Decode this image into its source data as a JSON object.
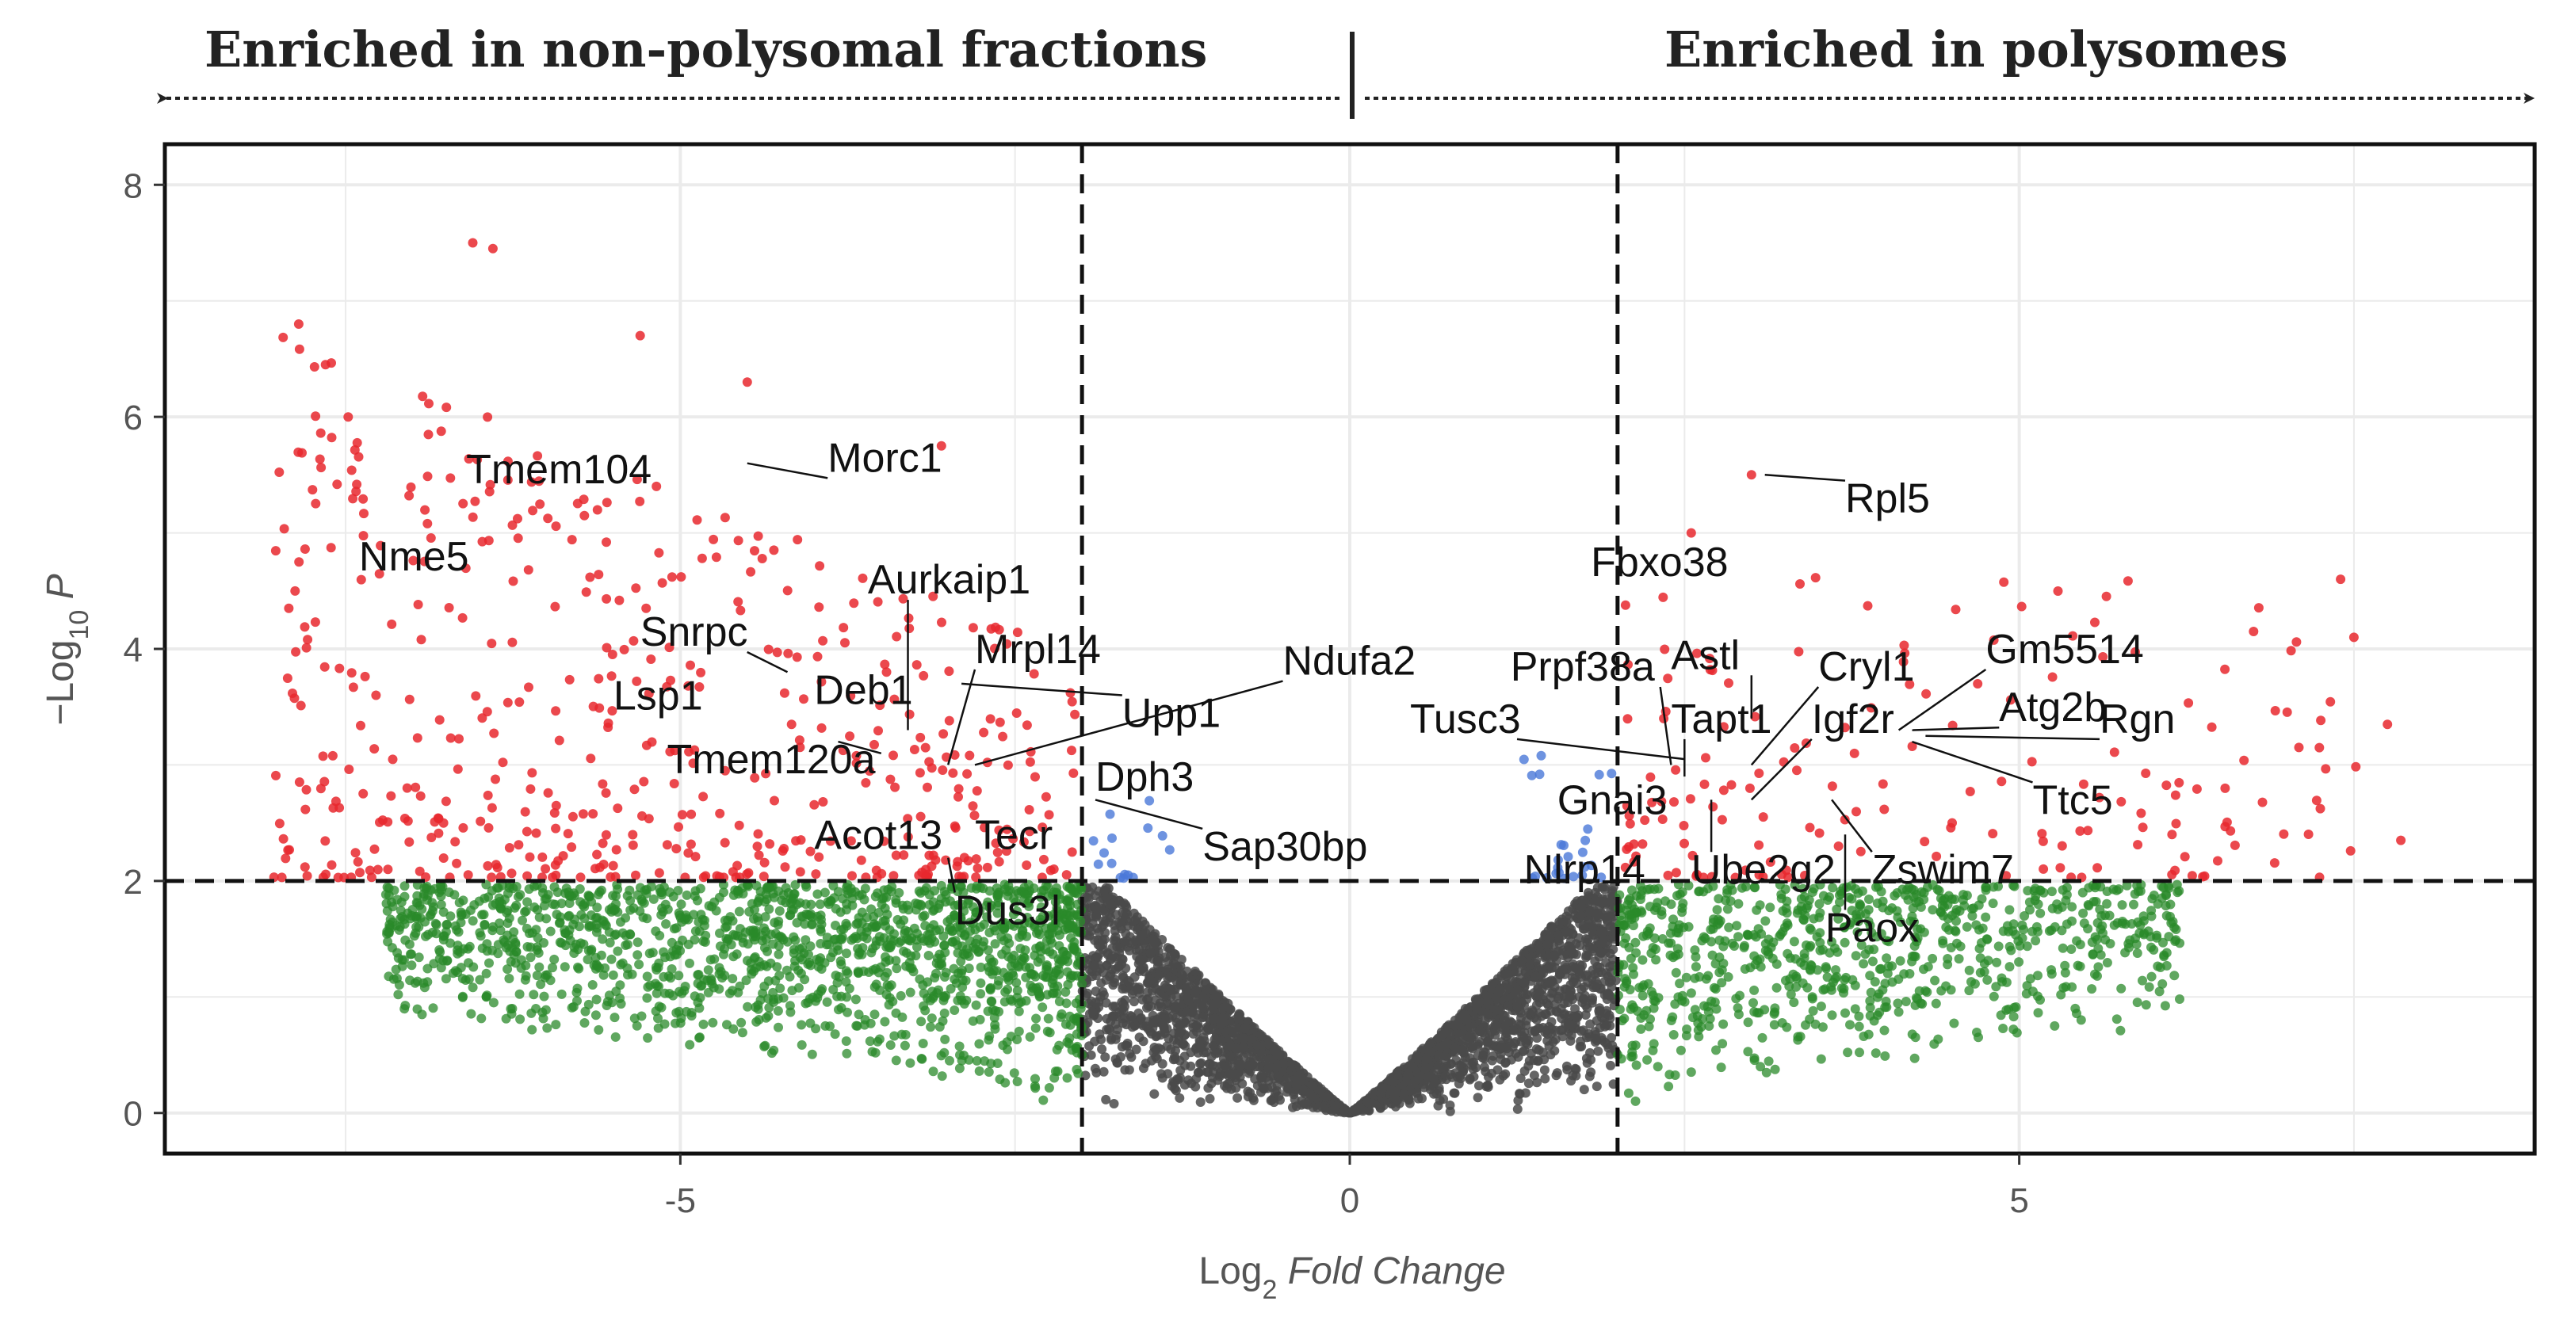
{
  "chart_data": {
    "type": "scatter",
    "subtype": "volcano",
    "title": "",
    "header_left": "Enriched in non-polysomal fractions",
    "header_right": "Enriched in polysomes",
    "xlabel_prefix": "Log",
    "xlabel_sub": "2",
    "xlabel_italic": " Fold Change",
    "ylabel_prefix": "−Log",
    "ylabel_sub": "10",
    "ylabel_italic": " P",
    "xlim": [
      -8.85,
      8.85
    ],
    "ylim": [
      -0.35,
      8.35
    ],
    "xticks": [
      -5,
      0,
      5
    ],
    "xtick_labels": [
      "-5",
      "0",
      "5"
    ],
    "yticks": [
      0,
      2,
      4,
      6,
      8
    ],
    "ytick_labels": [
      "0",
      "2",
      "4",
      "6",
      "8"
    ],
    "fc_cutoff": 2,
    "p_cutoff": 2,
    "grid": true,
    "colors": {
      "both": "#e8282e",
      "fold_change_only": "#2a8a2a",
      "p_only": "#4a78d8",
      "not_significant": "#4a4a4a"
    },
    "labeled_genes": [
      {
        "name": "Tmem104",
        "x": -5.4,
        "y": 5.7,
        "lx": -6.6,
        "ly": 5.55
      },
      {
        "name": "Morc1",
        "x": -4.5,
        "y": 5.6,
        "lx": -3.9,
        "ly": 5.65
      },
      {
        "name": "Nme5",
        "x": -7.3,
        "y": 5.0,
        "lx": -7.4,
        "ly": 4.8
      },
      {
        "name": "Aurkaip1",
        "x": -3.3,
        "y": 3.3,
        "lx": -3.6,
        "ly": 4.6
      },
      {
        "name": "Snrpc",
        "x": -4.2,
        "y": 3.8,
        "lx": -5.3,
        "ly": 4.15
      },
      {
        "name": "Mrpl14",
        "x": -3.0,
        "y": 3.0,
        "lx": -2.8,
        "ly": 4.0
      },
      {
        "name": "Lsp1",
        "x": -5.1,
        "y": 3.6,
        "lx": -5.5,
        "ly": 3.6
      },
      {
        "name": "Deb1",
        "x": -3.4,
        "y": 3.2,
        "lx": -4.0,
        "ly": 3.65
      },
      {
        "name": "Ndufa2",
        "x": -2.8,
        "y": 3.0,
        "lx": -0.5,
        "ly": 3.9
      },
      {
        "name": "Upp1",
        "x": -2.9,
        "y": 3.7,
        "lx": -1.7,
        "ly": 3.45
      },
      {
        "name": "Tmem120a",
        "x": -3.5,
        "y": 3.1,
        "lx": -5.1,
        "ly": 3.05
      },
      {
        "name": "Dph3",
        "x": -2.0,
        "y": 3.0,
        "lx": -1.9,
        "ly": 2.9
      },
      {
        "name": "Acot13",
        "x": -3.5,
        "y": 2.4,
        "lx": -4.0,
        "ly": 2.4
      },
      {
        "name": "Tecr",
        "x": -3.0,
        "y": 2.2,
        "lx": -2.8,
        "ly": 2.4
      },
      {
        "name": "Sap30bp",
        "x": -1.9,
        "y": 2.7,
        "lx": -1.1,
        "ly": 2.3
      },
      {
        "name": "Dus3l",
        "x": -3.0,
        "y": 2.2,
        "lx": -2.95,
        "ly": 1.75
      },
      {
        "name": "Rpl5",
        "x": 3.1,
        "y": 5.5,
        "lx": 3.7,
        "ly": 5.3
      },
      {
        "name": "Fbxo38",
        "x": 1.9,
        "y": 4.3,
        "lx": 1.8,
        "ly": 4.75
      },
      {
        "name": "Prpf38a",
        "x": 2.4,
        "y": 3.0,
        "lx": 1.2,
        "ly": 3.85
      },
      {
        "name": "Astl",
        "x": 3.0,
        "y": 3.4,
        "lx": 2.4,
        "ly": 3.95
      },
      {
        "name": "Cryl1",
        "x": 3.0,
        "y": 3.0,
        "lx": 3.5,
        "ly": 3.85
      },
      {
        "name": "Gm5514",
        "x": 4.1,
        "y": 3.3,
        "lx": 4.75,
        "ly": 4.0
      },
      {
        "name": "Tusc3",
        "x": 2.5,
        "y": 3.05,
        "lx": 0.45,
        "ly": 3.4
      },
      {
        "name": "Tapt1",
        "x": 2.5,
        "y": 2.9,
        "lx": 2.4,
        "ly": 3.4
      },
      {
        "name": "Igf2r",
        "x": 3.0,
        "y": 2.7,
        "lx": 3.45,
        "ly": 3.4
      },
      {
        "name": "Atg2b",
        "x": 4.2,
        "y": 3.3,
        "lx": 4.85,
        "ly": 3.5
      },
      {
        "name": "Rgn",
        "x": 4.3,
        "y": 3.25,
        "lx": 5.6,
        "ly": 3.4
      },
      {
        "name": "Gnai3",
        "x": 2.3,
        "y": 2.8,
        "lx": 1.55,
        "ly": 2.7
      },
      {
        "name": "Ttc5",
        "x": 4.2,
        "y": 3.2,
        "lx": 5.1,
        "ly": 2.7
      },
      {
        "name": "Nlrp14",
        "x": 1.8,
        "y": 2.2,
        "lx": 1.3,
        "ly": 2.1
      },
      {
        "name": "Ube2g2",
        "x": 2.7,
        "y": 2.7,
        "lx": 2.55,
        "ly": 2.1
      },
      {
        "name": "Zswim7",
        "x": 3.6,
        "y": 2.7,
        "lx": 3.9,
        "ly": 2.1
      },
      {
        "name": "Paox",
        "x": 3.7,
        "y": 2.4,
        "lx": 3.55,
        "ly": 1.6
      }
    ],
    "highlighted_points": [
      {
        "x": -6.55,
        "y": 7.5
      },
      {
        "x": -6.4,
        "y": 7.45
      },
      {
        "x": -7.85,
        "y": 6.8
      },
      {
        "x": -7.65,
        "y": 6.45
      },
      {
        "x": -5.3,
        "y": 6.7
      },
      {
        "x": -4.5,
        "y": 6.3
      },
      {
        "x": -3.05,
        "y": 5.75
      },
      {
        "x": 3.0,
        "y": 5.5
      },
      {
        "x": 2.55,
        "y": 5.0
      },
      {
        "x": 7.4,
        "y": 4.6
      },
      {
        "x": 7.5,
        "y": 4.1
      },
      {
        "x": 6.75,
        "y": 4.15
      },
      {
        "x": 7.75,
        "y": 3.35
      },
      {
        "x": 7.85,
        "y": 2.35
      }
    ]
  }
}
